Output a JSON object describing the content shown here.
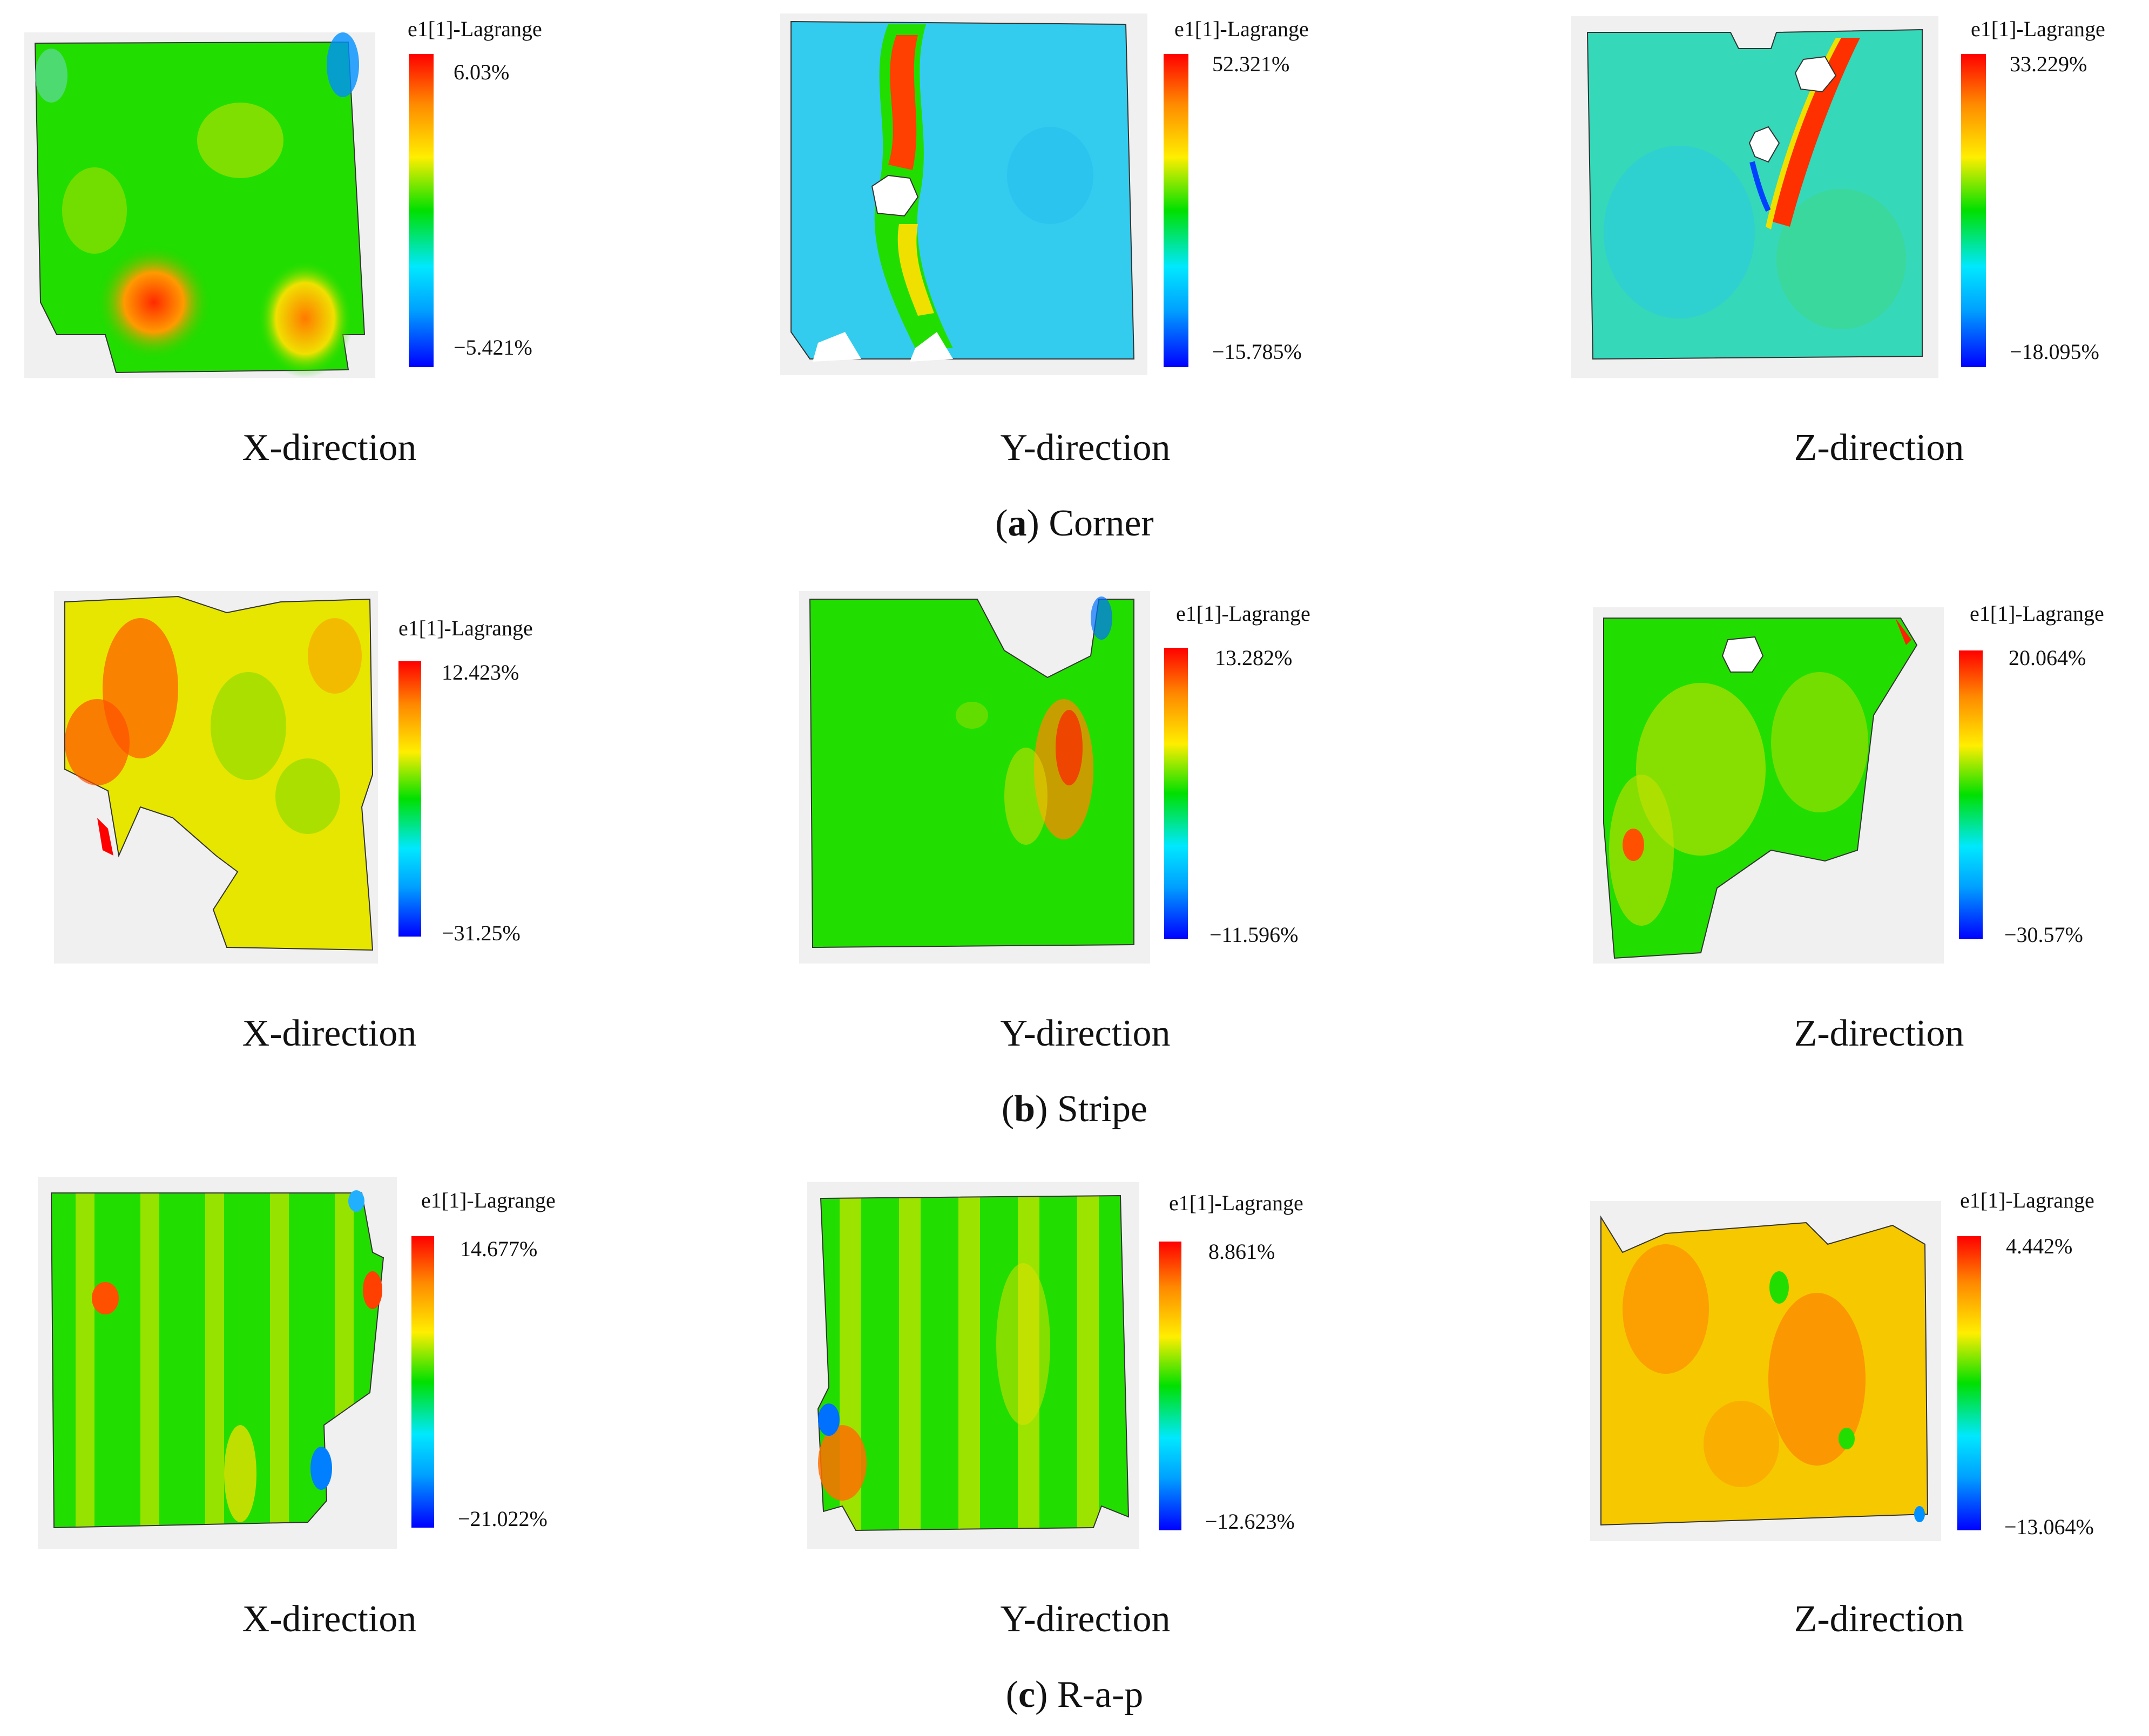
{
  "legend_title": "e1[1]-Lagrange",
  "rows": [
    {
      "letter": "a",
      "label": "Corner",
      "panels": [
        {
          "direction": "X-direction",
          "max": "6.03%",
          "min": "−5.421%"
        },
        {
          "direction": "Y-direction",
          "max": "52.321%",
          "min": "−15.785%"
        },
        {
          "direction": "Z-direction",
          "max": "33.229%",
          "min": "−18.095%"
        }
      ]
    },
    {
      "letter": "b",
      "label": "Stripe",
      "panels": [
        {
          "direction": "X-direction",
          "max": "12.423%",
          "min": "−31.25%"
        },
        {
          "direction": "Y-direction",
          "max": "13.282%",
          "min": "−11.596%"
        },
        {
          "direction": "Z-direction",
          "max": "20.064%",
          "min": "−30.57%"
        }
      ]
    },
    {
      "letter": "c",
      "label": "R-a-p",
      "panels": [
        {
          "direction": "X-direction",
          "max": "14.677%",
          "min": "−21.022%"
        },
        {
          "direction": "Y-direction",
          "max": "8.861%",
          "min": "−12.623%"
        },
        {
          "direction": "Z-direction",
          "max": "4.442%",
          "min": "−13.064%"
        }
      ]
    }
  ]
}
